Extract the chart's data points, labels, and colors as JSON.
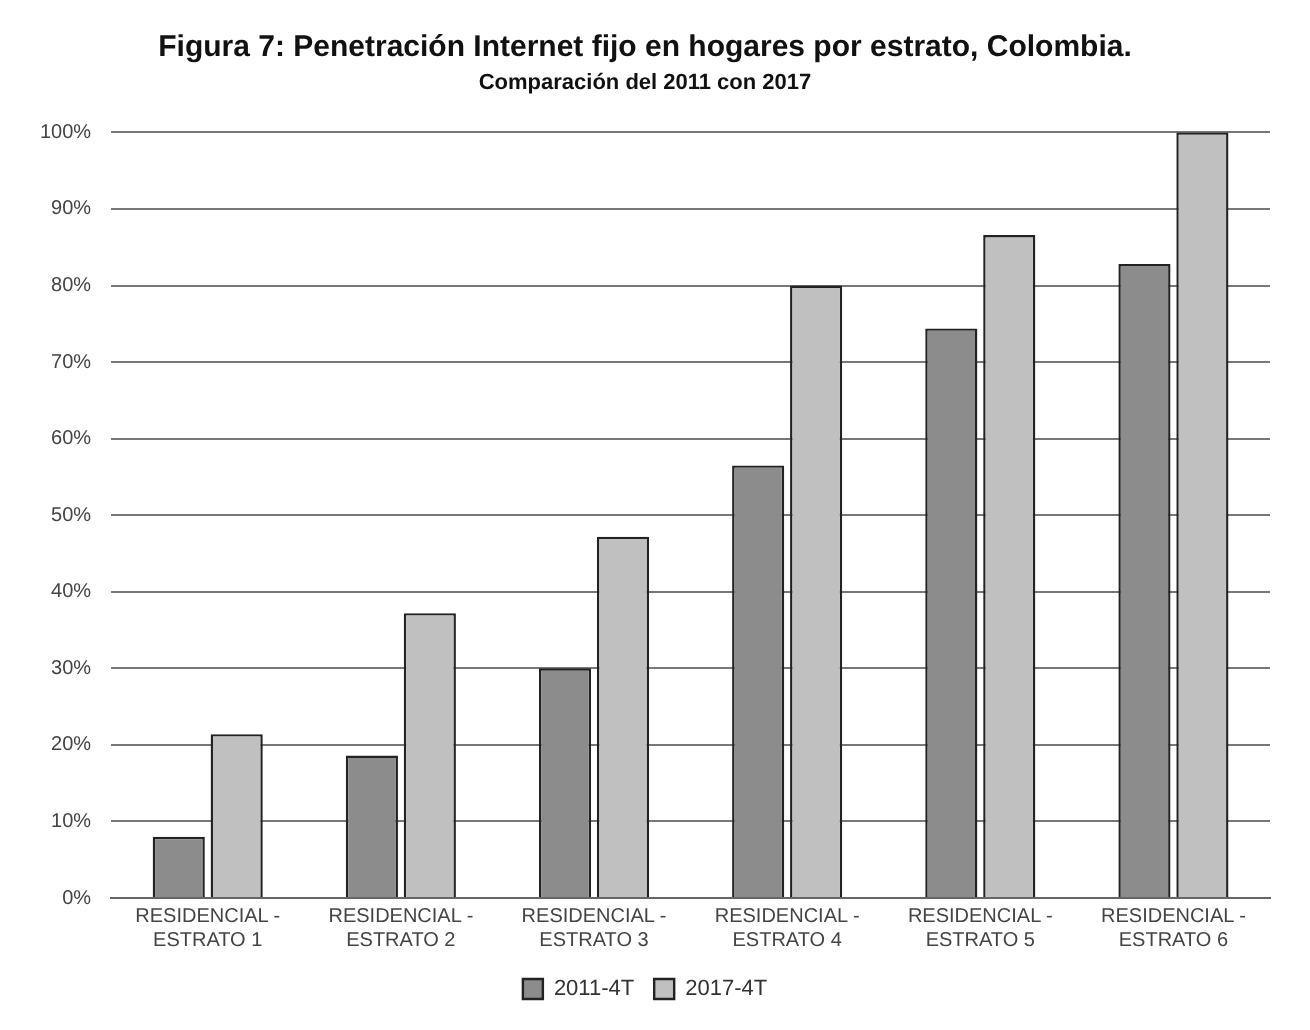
{
  "chart_data": {
    "type": "bar",
    "title": "Figura 7: Penetración Internet fijo en hogares por estrato, Colombia.",
    "subtitle": "Comparación del 2011 con 2017",
    "categories": [
      "RESIDENCIAL - ESTRATO 1",
      "RESIDENCIAL - ESTRATO 2",
      "RESIDENCIAL - ESTRATO 3",
      "RESIDENCIAL - ESTRATO 4",
      "RESIDENCIAL - ESTRATO 5",
      "RESIDENCIAL - ESTRATO 6"
    ],
    "series": [
      {
        "name": "2011-4T",
        "color": "#8c8c8c",
        "values": [
          8,
          18.6,
          30,
          56.5,
          74.4,
          82.8
        ]
      },
      {
        "name": "2017-4T",
        "color": "#c0c0c0",
        "values": [
          21.4,
          37.2,
          47.2,
          80,
          86.6,
          100
        ]
      }
    ],
    "ylim": [
      0,
      100
    ],
    "yticks": [
      {
        "value": 0,
        "label": "0%"
      },
      {
        "value": 10,
        "label": "10%"
      },
      {
        "value": 20,
        "label": "20%"
      },
      {
        "value": 30,
        "label": "30%"
      },
      {
        "value": 40,
        "label": "40%"
      },
      {
        "value": 50,
        "label": "50%"
      },
      {
        "value": 60,
        "label": "60%"
      },
      {
        "value": 70,
        "label": "70%"
      },
      {
        "value": 80,
        "label": "80%"
      },
      {
        "value": 90,
        "label": "90%"
      },
      {
        "value": 100,
        "label": "100%"
      }
    ],
    "grid": "y",
    "legend": "bottom"
  }
}
